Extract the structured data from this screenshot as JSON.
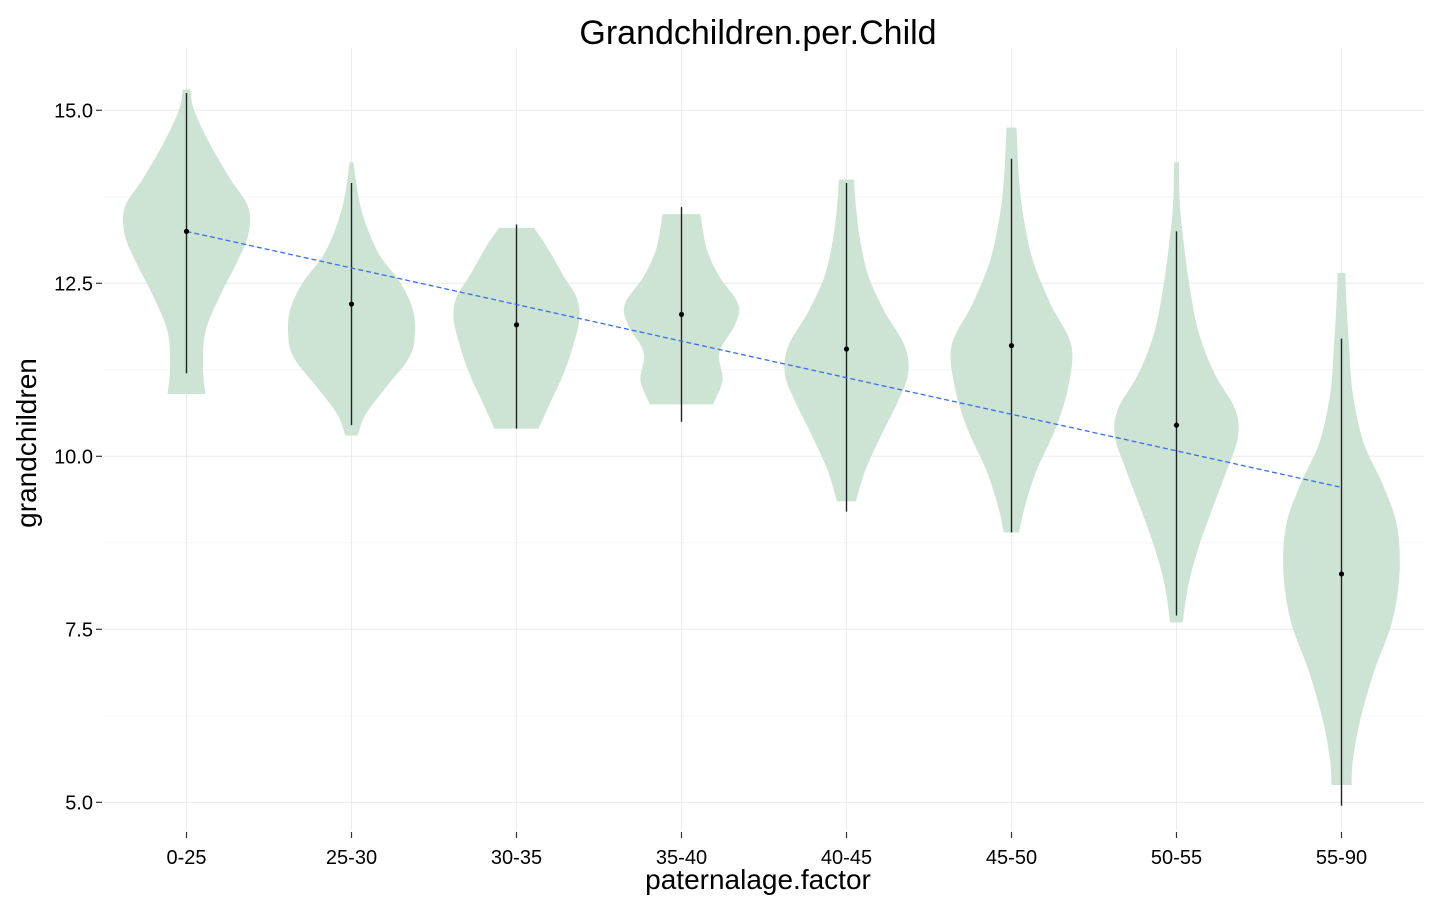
{
  "chart_data": {
    "type": "violin",
    "title": "Grandchildren.per.Child",
    "xlabel": "paternalage.factor",
    "ylabel": "grandchildren",
    "ylim": [
      4.6,
      15.9
    ],
    "yticks": [
      5.0,
      7.5,
      10.0,
      12.5,
      15.0
    ],
    "ytick_labels": [
      "5.0",
      "7.5",
      "10.0",
      "12.5",
      "15.0"
    ],
    "grid": true,
    "fill_color": "#cde3d4",
    "trend_color": "#3a6fe8",
    "categories": [
      "0-25",
      "25-30",
      "30-35",
      "35-40",
      "40-45",
      "45-50",
      "50-55",
      "55-90"
    ],
    "violins": [
      {
        "category": "0-25",
        "min": 10.9,
        "max": 15.3,
        "median": 13.25,
        "range_low": 11.2,
        "range_high": 15.25,
        "density": [
          [
            10.9,
            0.3
          ],
          [
            11.3,
            0.26
          ],
          [
            11.8,
            0.3
          ],
          [
            12.3,
            0.52
          ],
          [
            12.8,
            0.8
          ],
          [
            13.2,
            0.98
          ],
          [
            13.6,
            0.98
          ],
          [
            14.0,
            0.7
          ],
          [
            14.5,
            0.38
          ],
          [
            15.0,
            0.12
          ],
          [
            15.3,
            0.06
          ]
        ]
      },
      {
        "category": "25-30",
        "min": 10.3,
        "max": 14.25,
        "median": 12.2,
        "range_low": 10.45,
        "range_high": 13.95,
        "density": [
          [
            10.3,
            0.1
          ],
          [
            10.6,
            0.22
          ],
          [
            11.0,
            0.55
          ],
          [
            11.4,
            0.9
          ],
          [
            11.7,
            1.0
          ],
          [
            12.1,
            0.98
          ],
          [
            12.5,
            0.78
          ],
          [
            12.9,
            0.45
          ],
          [
            13.3,
            0.25
          ],
          [
            13.7,
            0.12
          ],
          [
            14.25,
            0.03
          ]
        ]
      },
      {
        "category": "30-35",
        "min": 10.4,
        "max": 13.3,
        "median": 11.9,
        "range_low": 10.4,
        "range_high": 13.35,
        "density": [
          [
            10.4,
            0.35
          ],
          [
            10.8,
            0.55
          ],
          [
            11.2,
            0.75
          ],
          [
            11.6,
            0.9
          ],
          [
            12.0,
            1.0
          ],
          [
            12.3,
            0.95
          ],
          [
            12.6,
            0.75
          ],
          [
            13.0,
            0.5
          ],
          [
            13.3,
            0.28
          ]
        ]
      },
      {
        "category": "35-40",
        "min": 10.75,
        "max": 13.5,
        "median": 12.05,
        "range_low": 10.5,
        "range_high": 13.6,
        "density": [
          [
            10.75,
            0.5
          ],
          [
            11.1,
            0.65
          ],
          [
            11.5,
            0.6
          ],
          [
            11.9,
            0.85
          ],
          [
            12.2,
            0.9
          ],
          [
            12.6,
            0.6
          ],
          [
            13.0,
            0.4
          ],
          [
            13.5,
            0.3
          ]
        ]
      },
      {
        "category": "40-45",
        "min": 9.35,
        "max": 14.0,
        "median": 11.55,
        "range_low": 9.2,
        "range_high": 13.95,
        "density": [
          [
            9.35,
            0.15
          ],
          [
            9.8,
            0.3
          ],
          [
            10.3,
            0.55
          ],
          [
            10.8,
            0.82
          ],
          [
            11.2,
            0.98
          ],
          [
            11.6,
            0.92
          ],
          [
            12.1,
            0.6
          ],
          [
            12.6,
            0.35
          ],
          [
            13.1,
            0.22
          ],
          [
            13.6,
            0.15
          ],
          [
            14.0,
            0.12
          ]
        ]
      },
      {
        "category": "45-50",
        "min": 8.9,
        "max": 14.75,
        "median": 11.6,
        "range_low": 8.9,
        "range_high": 14.3,
        "density": [
          [
            8.9,
            0.12
          ],
          [
            9.3,
            0.22
          ],
          [
            9.8,
            0.4
          ],
          [
            10.4,
            0.7
          ],
          [
            11.0,
            0.9
          ],
          [
            11.6,
            0.95
          ],
          [
            12.2,
            0.62
          ],
          [
            12.8,
            0.35
          ],
          [
            13.4,
            0.2
          ],
          [
            14.0,
            0.12
          ],
          [
            14.75,
            0.08
          ]
        ]
      },
      {
        "category": "50-55",
        "min": 7.6,
        "max": 14.25,
        "median": 10.45,
        "range_low": 7.7,
        "range_high": 13.25,
        "density": [
          [
            7.6,
            0.1
          ],
          [
            8.1,
            0.18
          ],
          [
            8.6,
            0.32
          ],
          [
            9.2,
            0.55
          ],
          [
            9.8,
            0.8
          ],
          [
            10.3,
            0.98
          ],
          [
            10.7,
            0.92
          ],
          [
            11.2,
            0.6
          ],
          [
            11.8,
            0.35
          ],
          [
            12.5,
            0.2
          ],
          [
            13.2,
            0.1
          ],
          [
            13.7,
            0.05
          ],
          [
            14.25,
            0.04
          ]
        ]
      },
      {
        "category": "55-90",
        "min": 5.25,
        "max": 12.65,
        "median": 8.3,
        "range_low": 4.95,
        "range_high": 11.7,
        "density": [
          [
            5.25,
            0.16
          ],
          [
            5.6,
            0.18
          ],
          [
            6.2,
            0.3
          ],
          [
            6.9,
            0.52
          ],
          [
            7.6,
            0.8
          ],
          [
            8.3,
            0.92
          ],
          [
            9.0,
            0.88
          ],
          [
            9.6,
            0.65
          ],
          [
            10.2,
            0.35
          ],
          [
            10.9,
            0.18
          ],
          [
            11.6,
            0.12
          ],
          [
            12.2,
            0.08
          ],
          [
            12.65,
            0.06
          ]
        ]
      }
    ],
    "trend_line": {
      "x_start": "0-25",
      "y_start": 13.25,
      "x_end": "55-90",
      "y_end": 9.55
    }
  }
}
